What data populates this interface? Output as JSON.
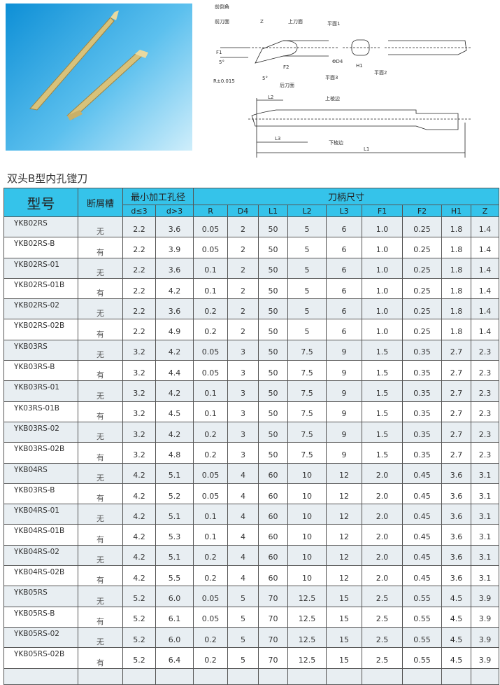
{
  "title": "双头B型内孔镗刀",
  "diagram": {
    "labels": [
      "前倒角",
      "前刀面",
      "上刀面",
      "平面1",
      "平面2",
      "平面3",
      "后刀面",
      "R±0.015",
      "F1",
      "F2",
      "Z",
      "ΦD4",
      "H1",
      "5°",
      "L2",
      "上棱边",
      "L3",
      "下棱边",
      "L1"
    ]
  },
  "header": {
    "model": "型号",
    "slot": "断屑槽",
    "min_bore": "最小加工孔径",
    "shank": "刀柄尺寸",
    "sub": [
      "d≤3",
      "d>3",
      "R",
      "D4",
      "L1",
      "L2",
      "L3",
      "F1",
      "F2",
      "H1",
      "Z"
    ]
  },
  "rows": [
    [
      "YKB02RS",
      "无",
      "2.2",
      "3.6",
      "0.05",
      "2",
      "50",
      "5",
      "6",
      "1.0",
      "0.25",
      "1.8",
      "1.4"
    ],
    [
      "YKB02RS-B",
      "有",
      "2.2",
      "3.9",
      "0.05",
      "2",
      "50",
      "5",
      "6",
      "1.0",
      "0.25",
      "1.8",
      "1.4"
    ],
    [
      "YKB02RS-01",
      "无",
      "2.2",
      "3.6",
      "0.1",
      "2",
      "50",
      "5",
      "6",
      "1.0",
      "0.25",
      "1.8",
      "1.4"
    ],
    [
      "YKB02RS-01B",
      "有",
      "2.2",
      "4.2",
      "0.1",
      "2",
      "50",
      "5",
      "6",
      "1.0",
      "0.25",
      "1.8",
      "1.4"
    ],
    [
      "YKB02RS-02",
      "无",
      "2.2",
      "3.6",
      "0.2",
      "2",
      "50",
      "5",
      "6",
      "1.0",
      "0.25",
      "1.8",
      "1.4"
    ],
    [
      "YKB02RS-02B",
      "有",
      "2.2",
      "4.9",
      "0.2",
      "2",
      "50",
      "5",
      "6",
      "1.0",
      "0.25",
      "1.8",
      "1.4"
    ],
    [
      "YKB03RS",
      "无",
      "3.2",
      "4.2",
      "0.05",
      "3",
      "50",
      "7.5",
      "9",
      "1.5",
      "0.35",
      "2.7",
      "2.3"
    ],
    [
      "YKB03RS-B",
      "有",
      "3.2",
      "4.4",
      "0.05",
      "3",
      "50",
      "7.5",
      "9",
      "1.5",
      "0.35",
      "2.7",
      "2.3"
    ],
    [
      "YKB03RS-01",
      "无",
      "3.2",
      "4.2",
      "0.1",
      "3",
      "50",
      "7.5",
      "9",
      "1.5",
      "0.35",
      "2.7",
      "2.3"
    ],
    [
      "YK03RS-01B",
      "有",
      "3.2",
      "4.5",
      "0.1",
      "3",
      "50",
      "7.5",
      "9",
      "1.5",
      "0.35",
      "2.7",
      "2.3"
    ],
    [
      "YKB03RS-02",
      "无",
      "3.2",
      "4.2",
      "0.2",
      "3",
      "50",
      "7.5",
      "9",
      "1.5",
      "0.35",
      "2.7",
      "2.3"
    ],
    [
      "YKB03RS-02B",
      "有",
      "3.2",
      "4.8",
      "0.2",
      "3",
      "50",
      "7.5",
      "9",
      "1.5",
      "0.35",
      "2.7",
      "2.3"
    ],
    [
      "YKB04RS",
      "无",
      "4.2",
      "5.1",
      "0.05",
      "4",
      "60",
      "10",
      "12",
      "2.0",
      "0.45",
      "3.6",
      "3.1"
    ],
    [
      "YKB03RS-B",
      "有",
      "4.2",
      "5.2",
      "0.05",
      "4",
      "60",
      "10",
      "12",
      "2.0",
      "0.45",
      "3.6",
      "3.1"
    ],
    [
      "YKB04RS-01",
      "无",
      "4.2",
      "5.1",
      "0.1",
      "4",
      "60",
      "10",
      "12",
      "2.0",
      "0.45",
      "3.6",
      "3.1"
    ],
    [
      "YKB04RS-01B",
      "有",
      "4.2",
      "5.3",
      "0.1",
      "4",
      "60",
      "10",
      "12",
      "2.0",
      "0.45",
      "3.6",
      "3.1"
    ],
    [
      "YKB04RS-02",
      "无",
      "4.2",
      "5.1",
      "0.2",
      "4",
      "60",
      "10",
      "12",
      "2.0",
      "0.45",
      "3.6",
      "3.1"
    ],
    [
      "YKB04RS-02B",
      "有",
      "4.2",
      "5.5",
      "0.2",
      "4",
      "60",
      "10",
      "12",
      "2.0",
      "0.45",
      "3.6",
      "3.1"
    ],
    [
      "YKB05RS",
      "无",
      "5.2",
      "6.0",
      "0.05",
      "5",
      "70",
      "12.5",
      "15",
      "2.5",
      "0.55",
      "4.5",
      "3.9"
    ],
    [
      "YKB05RS-B",
      "有",
      "5.2",
      "6.1",
      "0.05",
      "5",
      "70",
      "12.5",
      "15",
      "2.5",
      "0.55",
      "4.5",
      "3.9"
    ],
    [
      "YKB05RS-02",
      "无",
      "5.2",
      "6.0",
      "0.2",
      "5",
      "70",
      "12.5",
      "15",
      "2.5",
      "0.55",
      "4.5",
      "3.9"
    ],
    [
      "YKB05RS-02B",
      "有",
      "5.2",
      "6.4",
      "0.2",
      "5",
      "70",
      "12.5",
      "15",
      "2.5",
      "0.55",
      "4.5",
      "3.9"
    ]
  ],
  "colors": {
    "header": "#35c3ea",
    "alt_row": "#e8eef2",
    "photo_bg": "#0e8fd6",
    "tool": "#d8c27a"
  }
}
